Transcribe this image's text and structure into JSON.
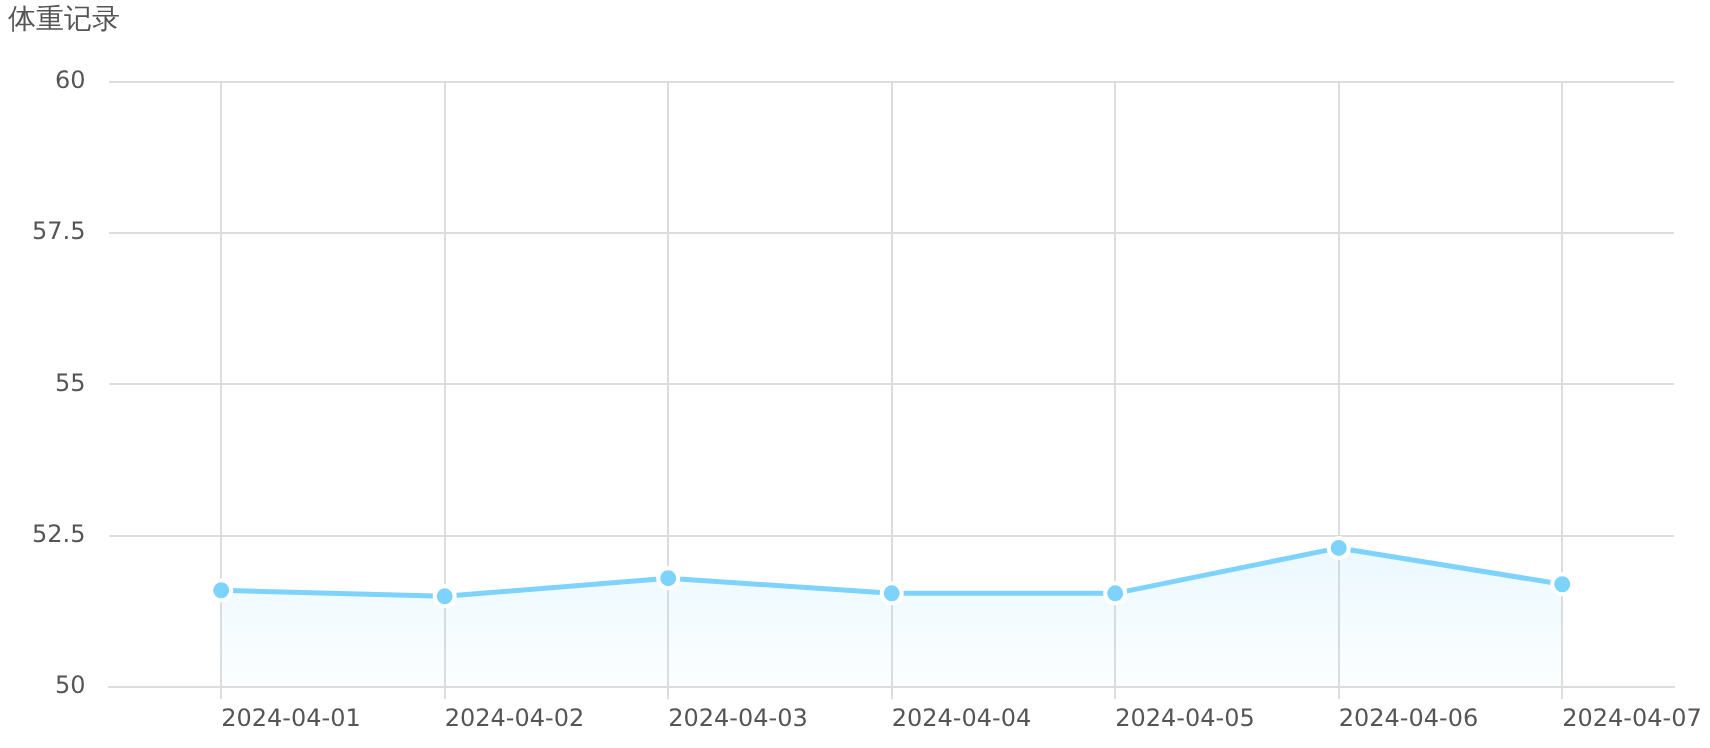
{
  "chart_data": {
    "type": "area",
    "title": "体重记录",
    "categories": [
      "2024-04-01",
      "2024-04-02",
      "2024-04-03",
      "2024-04-04",
      "2024-04-05",
      "2024-04-06",
      "2024-04-07"
    ],
    "series": [
      {
        "color": "#7dd3fc",
        "values": [
          51.6,
          51.5,
          51.8,
          51.55,
          51.55,
          52.3,
          51.7
        ]
      }
    ],
    "ylim": [
      50,
      60
    ],
    "yticks": [
      50,
      52.5,
      55,
      57.5,
      60
    ],
    "grid": true,
    "marker": "circle",
    "line_style": "solid",
    "legend": false
  }
}
